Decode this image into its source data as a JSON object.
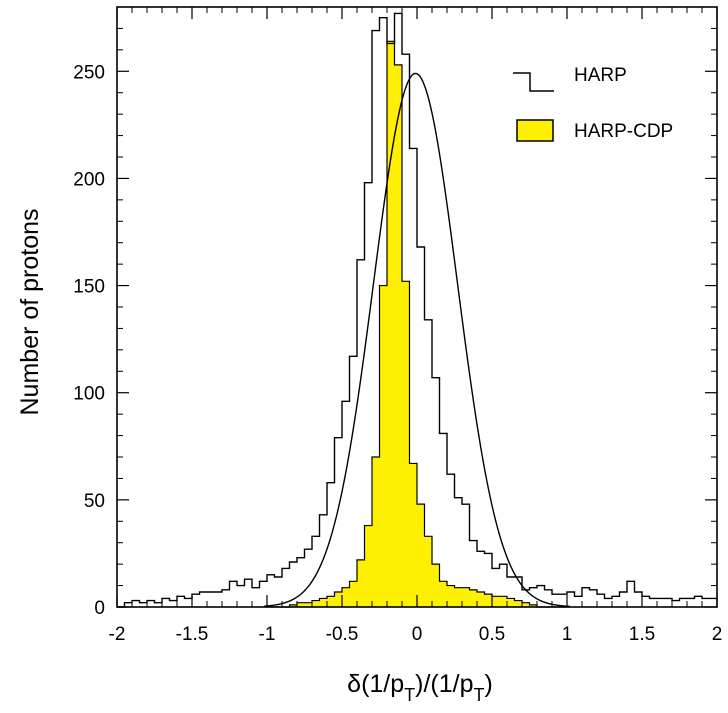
{
  "chart_data": {
    "type": "bar",
    "xlabel": "δ(1/p",
    "xlabel_sub": "T",
    "xlabel_mid": ")/(1/p",
    "xlabel_end": ")",
    "ylabel": "Number of protons",
    "xlim": [
      -2,
      2
    ],
    "ylim": [
      0,
      280
    ],
    "xticks": [
      -2,
      -1.5,
      -1,
      -0.5,
      0,
      0.5,
      1,
      1.5,
      2
    ],
    "xtick_labels": [
      "-2",
      "-1.5",
      "-1",
      "-0.5",
      "0",
      "0.5",
      "1",
      "1.5",
      "2"
    ],
    "yticks": [
      0,
      50,
      100,
      150,
      200,
      250
    ],
    "ytick_labels": [
      "0",
      "50",
      "100",
      "150",
      "200",
      "250"
    ],
    "bin_width": 0.05,
    "bin_edges_start": -2,
    "legend": {
      "placement": "top-right"
    },
    "series": [
      {
        "name": "HARP",
        "style": "step-outline",
        "color": "#000000",
        "values": [
          0,
          2,
          3,
          2,
          3,
          2,
          4,
          3,
          5,
          4,
          6,
          7,
          7,
          7,
          8,
          12,
          10,
          13,
          9,
          12,
          15,
          14,
          18,
          21,
          23,
          27,
          33,
          43,
          58,
          79,
          96,
          117,
          162,
          198,
          269,
          275,
          263,
          277,
          258,
          214,
          168,
          134,
          107,
          81,
          62,
          51,
          48,
          31,
          26,
          25,
          18,
          20,
          14,
          14,
          8,
          9,
          10,
          8,
          6,
          6,
          7,
          5,
          9,
          8,
          6,
          4,
          5,
          7,
          12,
          7,
          5,
          4,
          4,
          4,
          3,
          4,
          4,
          5,
          4,
          4
        ]
      },
      {
        "name": "HARP-CDP",
        "style": "filled",
        "color": "#ffef00",
        "values": [
          0,
          0,
          0,
          0,
          0,
          0,
          0,
          0,
          0,
          0,
          0,
          0,
          0,
          0,
          0,
          0,
          0,
          0,
          0,
          0,
          0,
          0,
          0,
          0,
          0,
          0,
          0,
          0,
          0,
          0,
          0,
          0,
          0,
          0,
          0,
          0,
          0,
          0,
          0,
          0,
          0,
          0,
          0,
          0,
          0,
          0,
          0,
          0,
          0,
          0,
          0,
          0,
          0,
          0,
          0,
          0,
          0,
          0,
          0,
          0,
          0,
          0,
          0,
          0,
          0,
          0,
          0,
          0,
          0,
          0,
          0,
          0,
          0,
          0,
          0,
          0,
          0,
          0,
          0,
          0
        ],
        "values_detail": {
          "start": -1.0,
          "values": [
            0,
            0,
            0,
            1,
            2,
            2,
            3,
            4,
            5,
            7,
            9,
            12,
            22,
            38,
            70,
            150,
            264,
            253,
            152,
            67,
            48,
            33,
            20,
            12,
            10,
            9,
            9,
            8,
            7,
            6,
            5,
            5,
            4,
            3,
            2,
            1,
            0,
            0,
            0,
            0
          ]
        }
      },
      {
        "name": "",
        "style": "gaussian-fit",
        "color": "#000000",
        "amplitude": 249,
        "mean": -0.01,
        "sigma": 0.28
      }
    ]
  }
}
